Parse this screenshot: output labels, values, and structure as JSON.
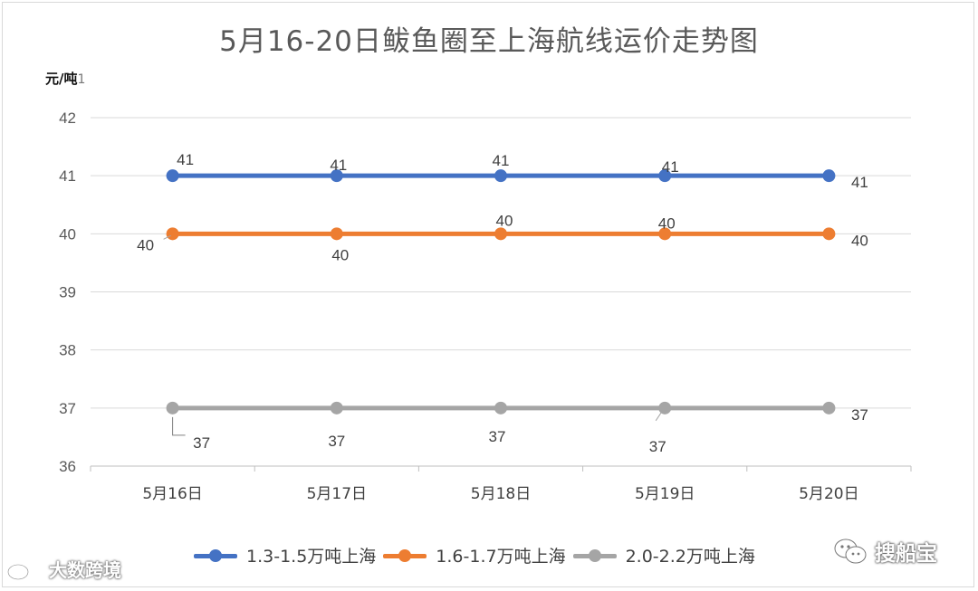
{
  "chart_data": {
    "type": "line",
    "title": "5月16-20日鲅鱼圈至上海航线运价走势图",
    "ylabel": "元/吨",
    "ylabel_suffix": "1",
    "xlabel": "",
    "categories": [
      "5月16日",
      "5月17日",
      "5月18日",
      "5月19日",
      "5月20日"
    ],
    "ylim": [
      36,
      42
    ],
    "yticks": [
      36,
      37,
      38,
      39,
      40,
      41,
      42
    ],
    "grid": true,
    "legend_position": "bottom",
    "series": [
      {
        "name": "1.3-1.5万吨上海",
        "color": "#4472c4",
        "values": [
          41,
          41,
          41,
          41,
          41
        ]
      },
      {
        "name": "1.6-1.7万吨上海",
        "color": "#ed7d31",
        "values": [
          40,
          40,
          40,
          40,
          40
        ]
      },
      {
        "name": "2.0-2.2万吨上海",
        "color": "#a5a5a5",
        "values": [
          37,
          37,
          37,
          37,
          37
        ]
      }
    ]
  },
  "watermarks": {
    "left_text": "大数跨境",
    "left_icon": "weibo-logo-icon",
    "right_text": "搜船宝",
    "right_icon": "wechat-icon"
  }
}
